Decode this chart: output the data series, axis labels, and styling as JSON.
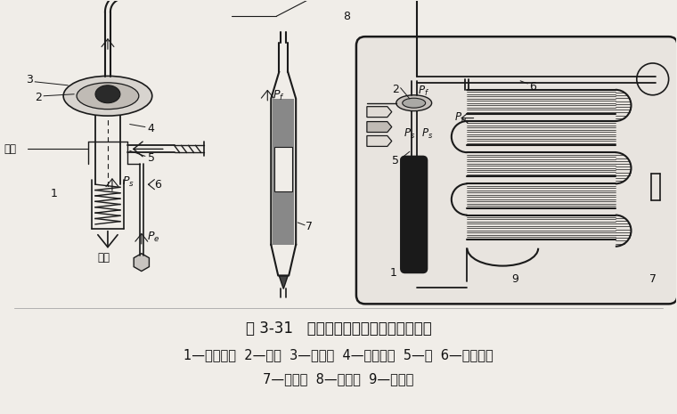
{
  "bg_color": "#f0ede8",
  "line_color": "#1a1a1a",
  "title_line": "图 3-31   外平衡式热力膨胀阀的工作原理",
  "caption_line1": "1—压力弹簧  2—膜片  3—膜片室  4—均衡管路  5—阀  6—外平衡管",
  "caption_line2": "7—热敏管  8—毛细管  9—蒸发器",
  "title_fontsize": 12,
  "caption_fontsize": 10.5,
  "text_color": "#111111"
}
